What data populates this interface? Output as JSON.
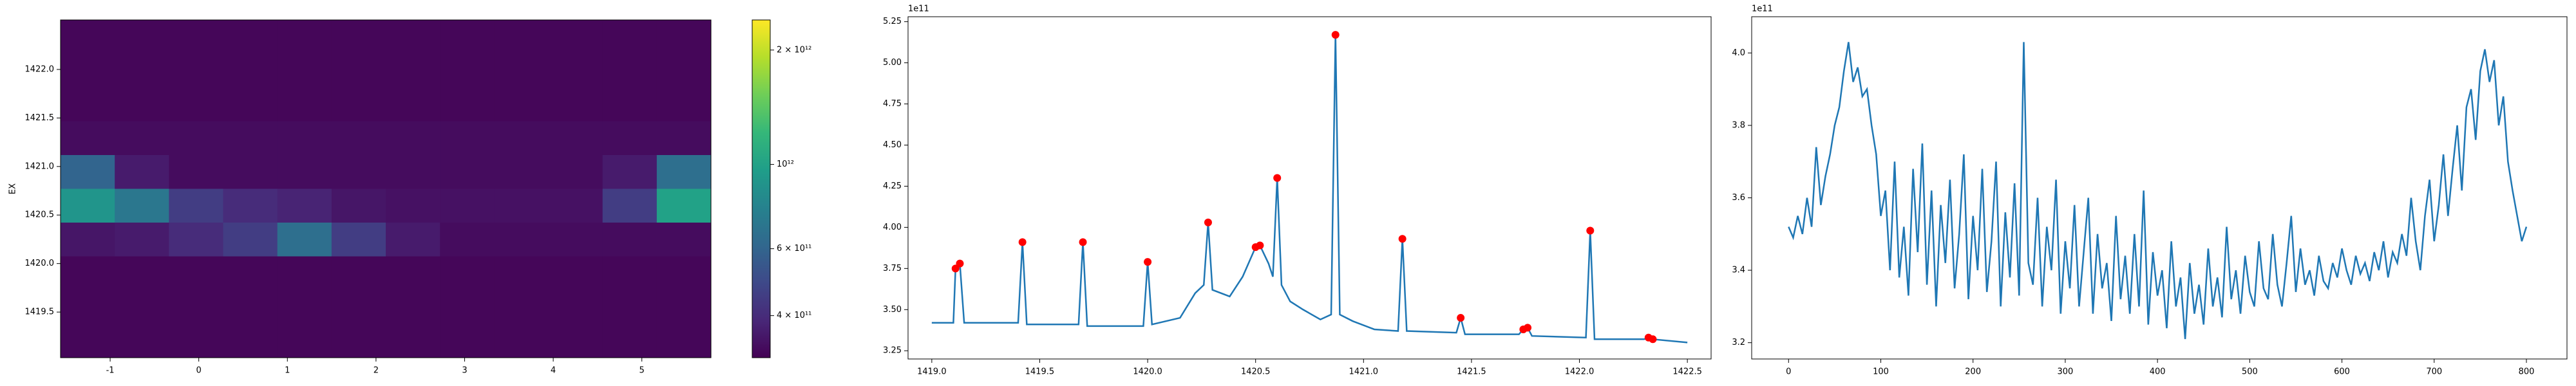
{
  "chart_data": [
    {
      "type": "heatmap",
      "ylabel": "EX",
      "colormap": "viridis",
      "zscale": "log",
      "xlim": [
        -1.56,
        5.78
      ],
      "ylim": [
        1419.03,
        1422.51
      ],
      "xticks": [
        -1,
        0,
        1,
        2,
        3,
        4,
        5
      ],
      "yticks": [
        {
          "value": 1419.5,
          "label": "1419.5"
        },
        {
          "value": 1420.0,
          "label": "1420.0"
        },
        {
          "value": 1420.5,
          "label": "1420.5"
        },
        {
          "value": 1421.0,
          "label": "1421.0"
        },
        {
          "value": 1421.5,
          "label": "1421.5"
        },
        {
          "value": 1422.0,
          "label": "1422.0"
        }
      ],
      "clim": [
        310000000000.0,
        2400000000000.0
      ],
      "cticks": [
        {
          "value": 400000000000.0,
          "label": "4 × 10¹¹"
        },
        {
          "value": 600000000000.0,
          "label": "6 × 10¹¹"
        },
        {
          "value": 1000000000000.0,
          "label": "10¹²"
        },
        {
          "value": 2000000000000.0,
          "label": "2 × 10¹²"
        }
      ],
      "z": [
        [
          320000000000.0,
          320000000000.0,
          320000000000.0,
          320000000000.0,
          320000000000.0,
          320000000000.0,
          320000000000.0,
          320000000000.0,
          320000000000.0,
          320000000000.0,
          320000000000.0,
          320000000000.0
        ],
        [
          320000000000.0,
          320000000000.0,
          320000000000.0,
          320000000000.0,
          320000000000.0,
          320000000000.0,
          320000000000.0,
          320000000000.0,
          320000000000.0,
          320000000000.0,
          320000000000.0,
          320000000000.0
        ],
        [
          320000000000.0,
          320000000000.0,
          320000000000.0,
          320000000000.0,
          320000000000.0,
          320000000000.0,
          320000000000.0,
          320000000000.0,
          320000000000.0,
          320000000000.0,
          320000000000.0,
          320000000000.0
        ],
        [
          330000000000.0,
          330000000000.0,
          330000000000.0,
          330000000000.0,
          330000000000.0,
          330000000000.0,
          330000000000.0,
          330000000000.0,
          330000000000.0,
          330000000000.0,
          330000000000.0,
          330000000000.0
        ],
        [
          600000000000.0,
          360000000000.0,
          330000000000.0,
          330000000000.0,
          330000000000.0,
          330000000000.0,
          330000000000.0,
          330000000000.0,
          330000000000.0,
          330000000000.0,
          360000000000.0,
          650000000000.0
        ],
        [
          900000000000.0,
          700000000000.0,
          450000000000.0,
          400000000000.0,
          380000000000.0,
          350000000000.0,
          340000000000.0,
          340000000000.0,
          340000000000.0,
          340000000000.0,
          450000000000.0,
          1000000000000.0
        ],
        [
          350000000000.0,
          360000000000.0,
          400000000000.0,
          450000000000.0,
          650000000000.0,
          450000000000.0,
          360000000000.0,
          330000000000.0,
          330000000000.0,
          330000000000.0,
          330000000000.0,
          330000000000.0
        ],
        [
          320000000000.0,
          320000000000.0,
          320000000000.0,
          320000000000.0,
          320000000000.0,
          320000000000.0,
          320000000000.0,
          320000000000.0,
          320000000000.0,
          320000000000.0,
          320000000000.0,
          320000000000.0
        ],
        [
          320000000000.0,
          320000000000.0,
          320000000000.0,
          320000000000.0,
          320000000000.0,
          320000000000.0,
          320000000000.0,
          320000000000.0,
          320000000000.0,
          320000000000.0,
          320000000000.0,
          320000000000.0
        ],
        [
          320000000000.0,
          320000000000.0,
          320000000000.0,
          320000000000.0,
          320000000000.0,
          320000000000.0,
          320000000000.0,
          320000000000.0,
          320000000000.0,
          320000000000.0,
          320000000000.0,
          320000000000.0
        ]
      ]
    },
    {
      "type": "line",
      "offset_text": "1e11",
      "xlim": [
        1418.89,
        1422.61
      ],
      "ylim": [
        320000000000.0,
        528000000000.0
      ],
      "xticks": [
        {
          "value": 1419.0,
          "label": "1419.0"
        },
        {
          "value": 1419.5,
          "label": "1419.5"
        },
        {
          "value": 1420.0,
          "label": "1420.0"
        },
        {
          "value": 1420.5,
          "label": "1420.5"
        },
        {
          "value": 1421.0,
          "label": "1421.0"
        },
        {
          "value": 1421.5,
          "label": "1421.5"
        },
        {
          "value": 1422.0,
          "label": "1422.0"
        },
        {
          "value": 1422.5,
          "label": "1422.5"
        }
      ],
      "yticks": [
        {
          "value": 325000000000.0,
          "label": "3.25"
        },
        {
          "value": 350000000000.0,
          "label": "3.50"
        },
        {
          "value": 375000000000.0,
          "label": "3.75"
        },
        {
          "value": 400000000000.0,
          "label": "4.00"
        },
        {
          "value": 425000000000.0,
          "label": "4.25"
        },
        {
          "value": 450000000000.0,
          "label": "4.50"
        },
        {
          "value": 475000000000.0,
          "label": "4.75"
        },
        {
          "value": 500000000000.0,
          "label": "5.00"
        },
        {
          "value": 525000000000.0,
          "label": "5.25"
        }
      ],
      "series": [
        {
          "mode": "lines",
          "color": "#1f77b4",
          "x": [
            1419.0,
            1419.1,
            1419.11,
            1419.13,
            1419.15,
            1419.4,
            1419.42,
            1419.44,
            1419.68,
            1419.7,
            1419.72,
            1419.98,
            1420.0,
            1420.02,
            1420.15,
            1420.22,
            1420.26,
            1420.28,
            1420.3,
            1420.38,
            1420.44,
            1420.5,
            1420.52,
            1420.56,
            1420.58,
            1420.6,
            1420.62,
            1420.66,
            1420.72,
            1420.8,
            1420.85,
            1420.87,
            1420.89,
            1420.95,
            1421.05,
            1421.16,
            1421.18,
            1421.2,
            1421.43,
            1421.45,
            1421.47,
            1421.72,
            1421.74,
            1421.76,
            1421.78,
            1422.03,
            1422.05,
            1422.07,
            1422.3,
            1422.32,
            1422.34,
            1422.5
          ],
          "values": [
            342000000000.0,
            342000000000.0,
            375000000000.0,
            378000000000.0,
            342000000000.0,
            342000000000.0,
            391000000000.0,
            341000000000.0,
            341000000000.0,
            391000000000.0,
            340000000000.0,
            340000000000.0,
            379000000000.0,
            341000000000.0,
            345000000000.0,
            360000000000.0,
            365000000000.0,
            403000000000.0,
            362000000000.0,
            358000000000.0,
            370000000000.0,
            388000000000.0,
            389000000000.0,
            378000000000.0,
            370000000000.0,
            430000000000.0,
            365000000000.0,
            355000000000.0,
            350000000000.0,
            344000000000.0,
            347000000000.0,
            517000000000.0,
            347000000000.0,
            343000000000.0,
            338000000000.0,
            337000000000.0,
            393000000000.0,
            337000000000.0,
            336000000000.0,
            345000000000.0,
            335000000000.0,
            335000000000.0,
            338000000000.0,
            339000000000.0,
            334000000000.0,
            333000000000.0,
            398000000000.0,
            332000000000.0,
            332000000000.0,
            333000000000.0,
            332000000000.0,
            330000000000.0
          ]
        },
        {
          "mode": "markers",
          "color": "#ff0000",
          "x": [
            1419.11,
            1419.13,
            1419.42,
            1419.7,
            1420.0,
            1420.28,
            1420.5,
            1420.52,
            1420.6,
            1420.87,
            1421.18,
            1421.45,
            1421.74,
            1421.76,
            1422.05,
            1422.32,
            1422.34
          ],
          "values": [
            375000000000.0,
            378000000000.0,
            391000000000.0,
            391000000000.0,
            379000000000.0,
            403000000000.0,
            388000000000.0,
            389000000000.0,
            430000000000.0,
            517000000000.0,
            393000000000.0,
            345000000000.0,
            338000000000.0,
            339000000000.0,
            398000000000.0,
            333000000000.0,
            332000000000.0
          ]
        }
      ]
    },
    {
      "type": "line",
      "offset_text": "1e11",
      "xlim": [
        -40,
        844
      ],
      "ylim": [
        315500000000.0,
        410000000000.0
      ],
      "xticks": [
        0,
        100,
        200,
        300,
        400,
        500,
        600,
        700,
        800
      ],
      "yticks": [
        {
          "value": 320000000000.0,
          "label": "3.2"
        },
        {
          "value": 340000000000.0,
          "label": "3.4"
        },
        {
          "value": 360000000000.0,
          "label": "3.6"
        },
        {
          "value": 380000000000.0,
          "label": "3.8"
        },
        {
          "value": 400000000000.0,
          "label": "4.0"
        }
      ],
      "series": [
        {
          "mode": "lines",
          "color": "#1f77b4",
          "x": [
            0,
            5,
            10,
            15,
            20,
            25,
            30,
            35,
            40,
            45,
            50,
            55,
            60,
            65,
            70,
            75,
            80,
            85,
            90,
            95,
            100,
            105,
            110,
            115,
            120,
            125,
            130,
            135,
            140,
            145,
            150,
            155,
            160,
            165,
            170,
            175,
            180,
            185,
            190,
            195,
            200,
            205,
            210,
            215,
            220,
            225,
            230,
            235,
            240,
            245,
            250,
            255,
            260,
            265,
            270,
            275,
            280,
            285,
            290,
            295,
            300,
            305,
            310,
            315,
            320,
            325,
            330,
            335,
            340,
            345,
            350,
            355,
            360,
            365,
            370,
            375,
            380,
            385,
            390,
            395,
            400,
            405,
            410,
            415,
            420,
            425,
            430,
            435,
            440,
            445,
            450,
            455,
            460,
            465,
            470,
            475,
            480,
            485,
            490,
            495,
            500,
            505,
            510,
            515,
            520,
            525,
            530,
            535,
            540,
            545,
            550,
            555,
            560,
            565,
            570,
            575,
            580,
            585,
            590,
            595,
            600,
            605,
            610,
            615,
            620,
            625,
            630,
            635,
            640,
            645,
            650,
            655,
            660,
            665,
            670,
            675,
            680,
            685,
            690,
            695,
            700,
            705,
            710,
            715,
            720,
            725,
            730,
            735,
            740,
            745,
            750,
            755,
            760,
            765,
            770,
            775,
            780,
            785,
            790,
            795,
            800
          ],
          "values": [
            352000000000.0,
            349000000000.0,
            355000000000.0,
            350000000000.0,
            360000000000.0,
            352000000000.0,
            374000000000.0,
            358000000000.0,
            366000000000.0,
            372000000000.0,
            380000000000.0,
            385000000000.0,
            395000000000.0,
            403000000000.0,
            392000000000.0,
            396000000000.0,
            388000000000.0,
            390000000000.0,
            380000000000.0,
            372000000000.0,
            355000000000.0,
            362000000000.0,
            340000000000.0,
            370000000000.0,
            338000000000.0,
            352000000000.0,
            333000000000.0,
            368000000000.0,
            345000000000.0,
            375000000000.0,
            336000000000.0,
            362000000000.0,
            330000000000.0,
            358000000000.0,
            342000000000.0,
            365000000000.0,
            335000000000.0,
            350000000000.0,
            372000000000.0,
            332000000000.0,
            355000000000.0,
            340000000000.0,
            368000000000.0,
            334000000000.0,
            348000000000.0,
            370000000000.0,
            330000000000.0,
            356000000000.0,
            338000000000.0,
            364000000000.0,
            333000000000.0,
            403000000000.0,
            342000000000.0,
            336000000000.0,
            360000000000.0,
            330000000000.0,
            352000000000.0,
            340000000000.0,
            365000000000.0,
            328000000000.0,
            348000000000.0,
            335000000000.0,
            358000000000.0,
            330000000000.0,
            345000000000.0,
            360000000000.0,
            328000000000.0,
            350000000000.0,
            335000000000.0,
            342000000000.0,
            326000000000.0,
            355000000000.0,
            332000000000.0,
            344000000000.0,
            328000000000.0,
            350000000000.0,
            330000000000.0,
            362000000000.0,
            325000000000.0,
            345000000000.0,
            333000000000.0,
            340000000000.0,
            324000000000.0,
            348000000000.0,
            330000000000.0,
            338000000000.0,
            321000000000.0,
            342000000000.0,
            328000000000.0,
            336000000000.0,
            325000000000.0,
            346000000000.0,
            330000000000.0,
            338000000000.0,
            327000000000.0,
            352000000000.0,
            332000000000.0,
            340000000000.0,
            328000000000.0,
            344000000000.0,
            334000000000.0,
            330000000000.0,
            348000000000.0,
            335000000000.0,
            332000000000.0,
            350000000000.0,
            336000000000.0,
            330000000000.0,
            342000000000.0,
            355000000000.0,
            334000000000.0,
            346000000000.0,
            336000000000.0,
            340000000000.0,
            333000000000.0,
            344000000000.0,
            337000000000.0,
            335000000000.0,
            342000000000.0,
            338000000000.0,
            346000000000.0,
            340000000000.0,
            336000000000.0,
            344000000000.0,
            339000000000.0,
            342000000000.0,
            337000000000.0,
            345000000000.0,
            340000000000.0,
            348000000000.0,
            338000000000.0,
            345000000000.0,
            342000000000.0,
            350000000000.0,
            344000000000.0,
            360000000000.0,
            348000000000.0,
            340000000000.0,
            355000000000.0,
            365000000000.0,
            348000000000.0,
            358000000000.0,
            372000000000.0,
            355000000000.0,
            368000000000.0,
            380000000000.0,
            362000000000.0,
            385000000000.0,
            390000000000.0,
            376000000000.0,
            395000000000.0,
            401000000000.0,
            392000000000.0,
            398000000000.0,
            380000000000.0,
            388000000000.0,
            370000000000.0,
            362000000000.0,
            355000000000.0,
            348000000000.0,
            352000000000.0
          ]
        }
      ]
    }
  ]
}
